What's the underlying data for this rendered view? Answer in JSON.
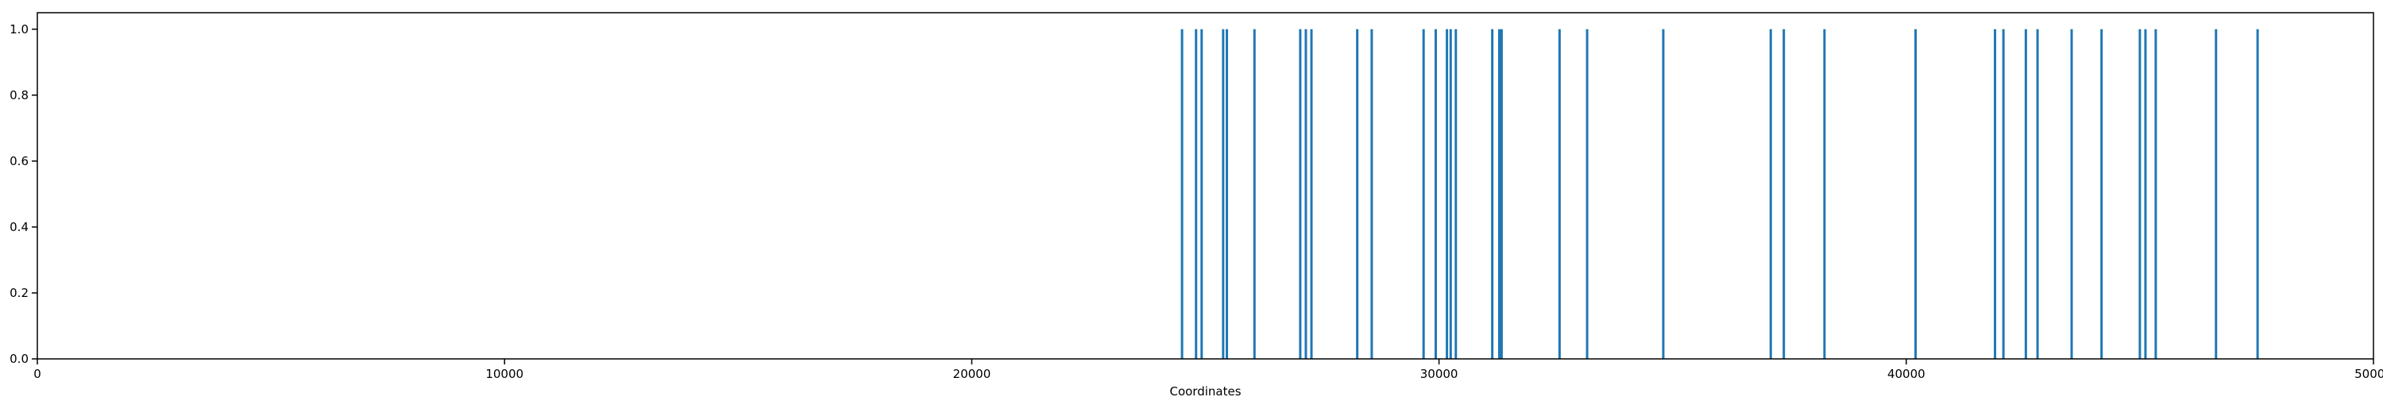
{
  "chart_data": {
    "type": "bar",
    "title": "",
    "xlabel": "Coordinates",
    "ylabel": "",
    "xlim": [
      0,
      50000
    ],
    "ylim": [
      0,
      1.05
    ],
    "grid": false,
    "legend": false,
    "x_ticks": [
      0,
      10000,
      20000,
      30000,
      40000,
      50000
    ],
    "x_tick_labels": [
      "0",
      "10000",
      "20000",
      "30000",
      "40000",
      "50000"
    ],
    "y_ticks": [
      0.0,
      0.2,
      0.4,
      0.6,
      0.8,
      1.0
    ],
    "y_tick_labels": [
      "0.0",
      "0.2",
      "0.4",
      "0.6",
      "0.8",
      "1.0"
    ],
    "series": [
      {
        "color": "#1f77b4",
        "x": [
          24500,
          24800,
          24920,
          25380,
          25460,
          26050,
          27030,
          27150,
          27270,
          28250,
          28560,
          29670,
          29930,
          30170,
          30250,
          30360,
          31140,
          31290,
          31340,
          32580,
          33170,
          34800,
          37100,
          37380,
          38250,
          40200,
          41900,
          42080,
          42560,
          42810,
          43540,
          44180,
          45000,
          45120,
          45340,
          46630,
          47520
        ],
        "values": [
          1,
          1,
          1,
          1,
          1,
          1,
          1,
          1,
          1,
          1,
          1,
          1,
          1,
          1,
          1,
          1,
          1,
          1,
          1,
          1,
          1,
          1,
          1,
          1,
          1,
          1,
          1,
          1,
          1,
          1,
          1,
          1,
          1,
          1,
          1,
          1,
          1
        ]
      }
    ]
  }
}
